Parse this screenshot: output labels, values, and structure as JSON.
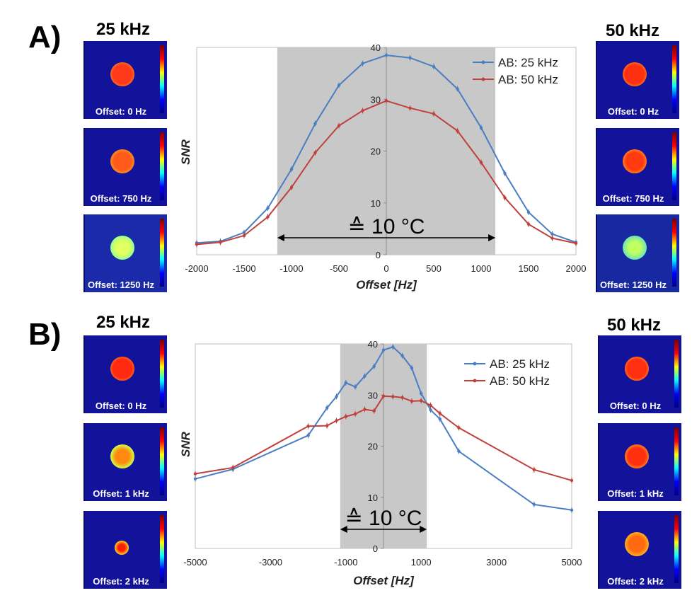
{
  "panels": [
    {
      "letter": "A)",
      "left_title": "25 kHz",
      "right_title": "50 kHz",
      "left_images": [
        "Offset: 0 Hz",
        "Offset: 750 Hz",
        "Offset: 1250 Hz"
      ],
      "right_images": [
        "Offset: 0 Hz",
        "Offset: 750 Hz",
        "Offset: 1250 Hz"
      ],
      "temp_annotation": "≙ 10 °C"
    },
    {
      "letter": "B)",
      "left_title": "25 kHz",
      "right_title": "50 kHz",
      "left_images": [
        "Offset: 0 Hz",
        "Offset: 1 kHz",
        "Offset: 2 kHz"
      ],
      "right_images": [
        "Offset: 0 Hz",
        "Offset: 1 kHz",
        "Offset: 2 kHz"
      ],
      "temp_annotation": "≙ 10 °C"
    }
  ],
  "colors": {
    "series_25": "#4a7ec2",
    "series_50": "#c0403c",
    "shade": "#c8c8c8",
    "thumb_bg": "#13129a"
  },
  "chart_data": [
    {
      "type": "line",
      "title": "",
      "xlabel": "Offset [Hz]",
      "ylabel": "SNR",
      "xlim": [
        -2000,
        2000
      ],
      "ylim": [
        0,
        40
      ],
      "xticks": [
        -2000,
        -1500,
        -1000,
        -500,
        0,
        500,
        1000,
        1500,
        2000
      ],
      "yticks": [
        0,
        10,
        20,
        30,
        40
      ],
      "shaded_range": [
        -1150,
        1150
      ],
      "legend_position": "top-right",
      "series": [
        {
          "name": "AB: 25 kHz",
          "x": [
            -2000,
            -1750,
            -1500,
            -1250,
            -1000,
            -750,
            -500,
            -250,
            0,
            250,
            500,
            750,
            1000,
            1250,
            1500,
            1750,
            2000
          ],
          "values": [
            2.3,
            2.6,
            4.3,
            9.0,
            16.5,
            25.3,
            32.7,
            36.9,
            38.5,
            38.0,
            36.3,
            32.0,
            24.5,
            15.7,
            8.2,
            4.0,
            2.4
          ]
        },
        {
          "name": "AB: 50 kHz",
          "x": [
            -2000,
            -1750,
            -1500,
            -1250,
            -1000,
            -750,
            -500,
            -250,
            0,
            250,
            500,
            750,
            1000,
            1250,
            1500,
            1750,
            2000
          ],
          "values": [
            2.0,
            2.4,
            3.7,
            7.3,
            13.0,
            19.7,
            24.9,
            27.8,
            29.7,
            28.3,
            27.2,
            23.9,
            17.8,
            11.0,
            5.9,
            3.2,
            2.2
          ]
        }
      ]
    },
    {
      "type": "line",
      "title": "",
      "xlabel": "Offset [Hz]",
      "ylabel": "SNR",
      "xlim": [
        -5000,
        5000
      ],
      "ylim": [
        0,
        40
      ],
      "xticks": [
        -5000,
        -3000,
        -1000,
        1000,
        3000,
        5000
      ],
      "yticks": [
        0,
        10,
        20,
        30,
        40
      ],
      "shaded_range": [
        -1150,
        1150
      ],
      "legend_position": "top-right",
      "series": [
        {
          "name": "AB: 25 kHz",
          "x": [
            -5000,
            -4000,
            -2000,
            -1500,
            -1250,
            -1000,
            -750,
            -500,
            -250,
            0,
            250,
            500,
            750,
            1000,
            1250,
            1500,
            2000,
            4000,
            5000
          ],
          "values": [
            13.6,
            15.5,
            22.1,
            27.5,
            29.7,
            32.4,
            31.6,
            33.7,
            35.6,
            38.8,
            39.4,
            37.7,
            35.3,
            30.3,
            27.1,
            25.3,
            19.0,
            8.6,
            7.5
          ]
        },
        {
          "name": "AB: 50 kHz",
          "x": [
            -5000,
            -4000,
            -2000,
            -1500,
            -1250,
            -1000,
            -750,
            -500,
            -250,
            0,
            250,
            500,
            750,
            1000,
            1250,
            1500,
            2000,
            4000,
            5000
          ],
          "values": [
            14.6,
            15.8,
            23.9,
            24.0,
            25.0,
            25.8,
            26.3,
            27.2,
            26.9,
            29.8,
            29.7,
            29.5,
            28.8,
            28.9,
            28.0,
            26.4,
            23.6,
            15.4,
            13.3
          ]
        }
      ]
    }
  ]
}
